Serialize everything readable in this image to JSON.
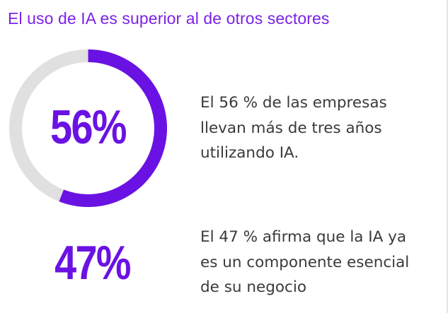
{
  "title": "El uso de IA es superior al de otros sectores",
  "stats": [
    {
      "value_label": "56%",
      "text_lines": [
        "El 56 % de las empresas",
        "llevan más de tres años",
        "utilizando IA."
      ]
    },
    {
      "value_label": "47%",
      "text_lines": [
        "El 47 % afirma que la IA ya",
        "es un componente esencial",
        "de su negocio"
      ]
    }
  ],
  "colors": {
    "accent": "#7b22e8",
    "ring_fill": "#6a12e3",
    "ring_track": "#e0e0e0",
    "text": "#3a3a3a"
  },
  "chart_data": {
    "type": "pie",
    "title": "",
    "values": [
      56,
      44
    ],
    "categories": [
      "",
      ""
    ],
    "center_label": "56%"
  }
}
